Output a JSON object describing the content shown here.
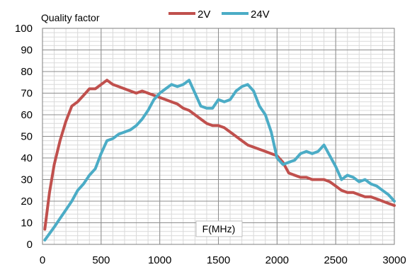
{
  "chart_data": {
    "type": "line",
    "title": "",
    "ylabel": "Quality factor",
    "xlabel": "F(MHz)",
    "xlim": [
      0,
      3000
    ],
    "ylim": [
      0,
      100
    ],
    "x_ticks": [
      0,
      500,
      1000,
      1500,
      2000,
      2500,
      3000
    ],
    "y_ticks": [
      0,
      10,
      20,
      30,
      40,
      50,
      60,
      70,
      80,
      90,
      100
    ],
    "grid": true,
    "legend_position": "top-center",
    "series": [
      {
        "name": "2V",
        "color": "#c0504d",
        "x": [
          20,
          60,
          100,
          150,
          200,
          250,
          300,
          350,
          400,
          450,
          500,
          550,
          600,
          650,
          700,
          750,
          800,
          850,
          900,
          950,
          1000,
          1050,
          1100,
          1150,
          1200,
          1250,
          1300,
          1350,
          1400,
          1450,
          1500,
          1550,
          1600,
          1650,
          1700,
          1750,
          1800,
          1850,
          1900,
          1950,
          2000,
          2050,
          2100,
          2150,
          2200,
          2250,
          2300,
          2350,
          2400,
          2450,
          2500,
          2550,
          2600,
          2650,
          2700,
          2750,
          2800,
          2850,
          2900,
          2950,
          3000
        ],
        "values": [
          7,
          24,
          37,
          48,
          57,
          64,
          66,
          69,
          72,
          72,
          74,
          76,
          74,
          73,
          72,
          71,
          70,
          71,
          70,
          69,
          68,
          67,
          66,
          65,
          63,
          62,
          60,
          58,
          56,
          55,
          55,
          54,
          52,
          50,
          48,
          46,
          45,
          44,
          43,
          42,
          41,
          38,
          33,
          32,
          31,
          31,
          30,
          30,
          30,
          29,
          27,
          25,
          24,
          24,
          23,
          22,
          22,
          21,
          20,
          19,
          18
        ]
      },
      {
        "name": "24V",
        "color": "#4bacc6",
        "x": [
          20,
          100,
          150,
          200,
          250,
          300,
          350,
          400,
          450,
          500,
          550,
          600,
          650,
          700,
          750,
          800,
          850,
          900,
          950,
          1000,
          1050,
          1100,
          1150,
          1200,
          1250,
          1300,
          1350,
          1400,
          1450,
          1500,
          1550,
          1600,
          1650,
          1700,
          1750,
          1800,
          1850,
          1900,
          1950,
          2000,
          2050,
          2100,
          2150,
          2200,
          2250,
          2300,
          2350,
          2400,
          2450,
          2500,
          2550,
          2600,
          2650,
          2700,
          2750,
          2800,
          2850,
          2900,
          2950,
          3000
        ],
        "values": [
          2,
          8,
          12,
          16,
          20,
          25,
          28,
          32,
          35,
          42,
          48,
          49,
          51,
          52,
          53,
          55,
          58,
          62,
          67,
          70,
          72,
          74,
          73,
          74,
          76,
          70,
          64,
          63,
          63,
          67,
          66,
          67,
          71,
          73,
          74,
          71,
          64,
          60,
          52,
          40,
          37,
          38,
          39,
          42,
          43,
          42,
          43,
          46,
          41,
          36,
          30,
          32,
          31,
          29,
          30,
          28,
          27,
          25,
          23,
          20
        ]
      }
    ]
  }
}
